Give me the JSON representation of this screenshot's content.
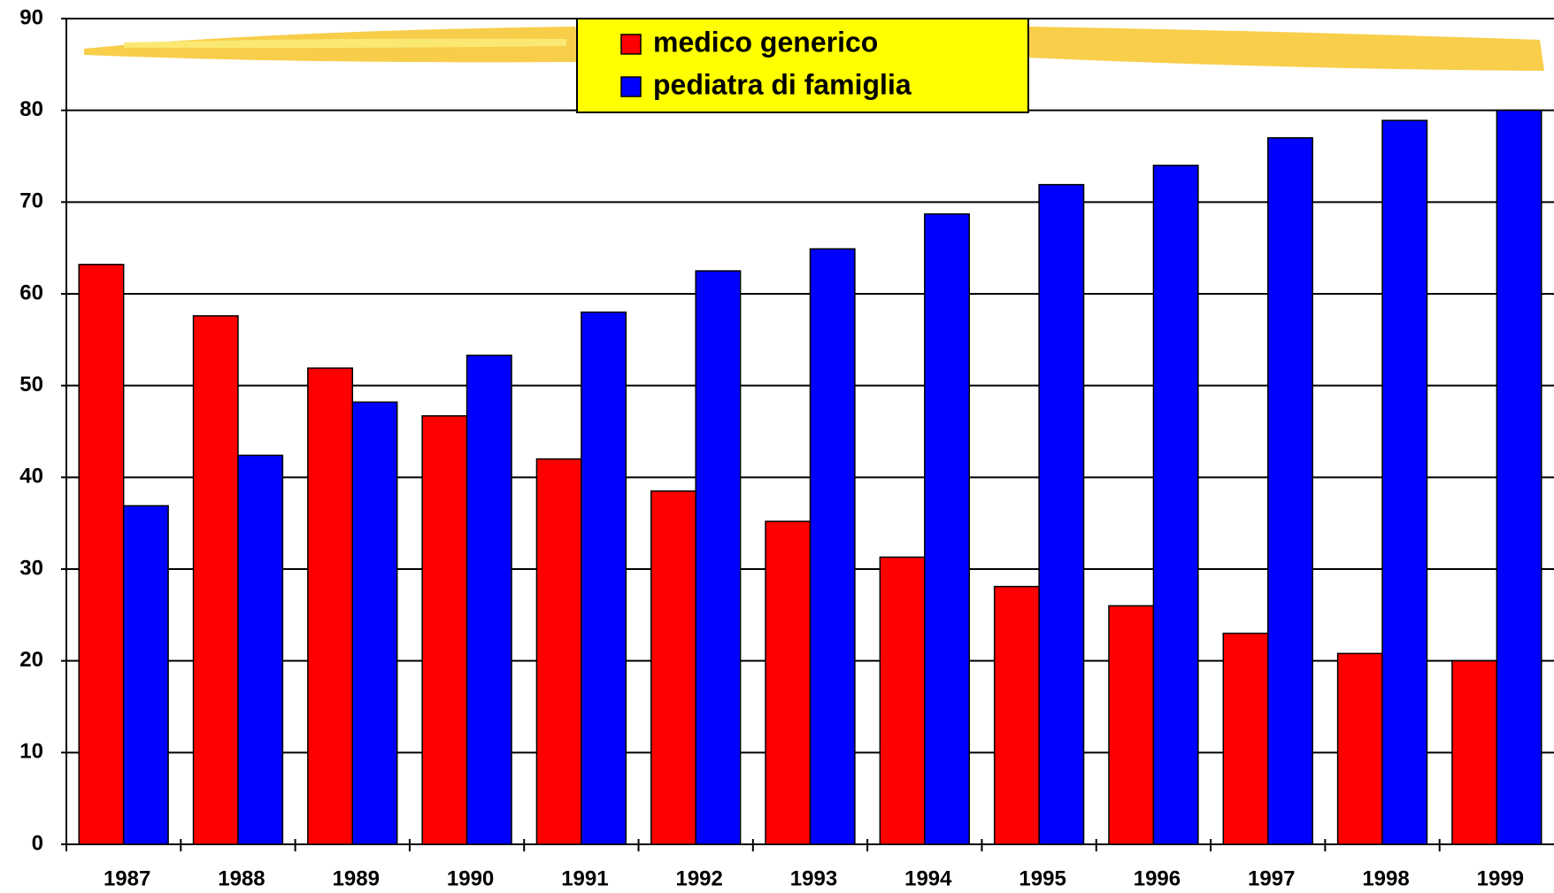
{
  "chart_data": {
    "type": "bar",
    "categories": [
      "1987",
      "1988",
      "1989",
      "1990",
      "1991",
      "1992",
      "1993",
      "1994",
      "1995",
      "1996",
      "1997",
      "1998",
      "1999"
    ],
    "series": [
      {
        "name": "medico generico",
        "color": "#ff0000",
        "values": [
          63.2,
          57.6,
          51.9,
          46.7,
          42.0,
          38.5,
          35.2,
          31.3,
          28.1,
          26.0,
          23.0,
          20.8,
          20.0
        ]
      },
      {
        "name": "pediatra di famiglia",
        "color": "#0000ff",
        "values": [
          36.9,
          42.4,
          48.2,
          53.3,
          58.0,
          62.5,
          64.9,
          68.7,
          71.9,
          74.0,
          77.0,
          78.9,
          80.0
        ]
      }
    ],
    "ylim": [
      0,
      90
    ],
    "yticks": [
      0,
      10,
      20,
      30,
      40,
      50,
      60,
      70,
      80,
      90
    ],
    "grid": true
  }
}
